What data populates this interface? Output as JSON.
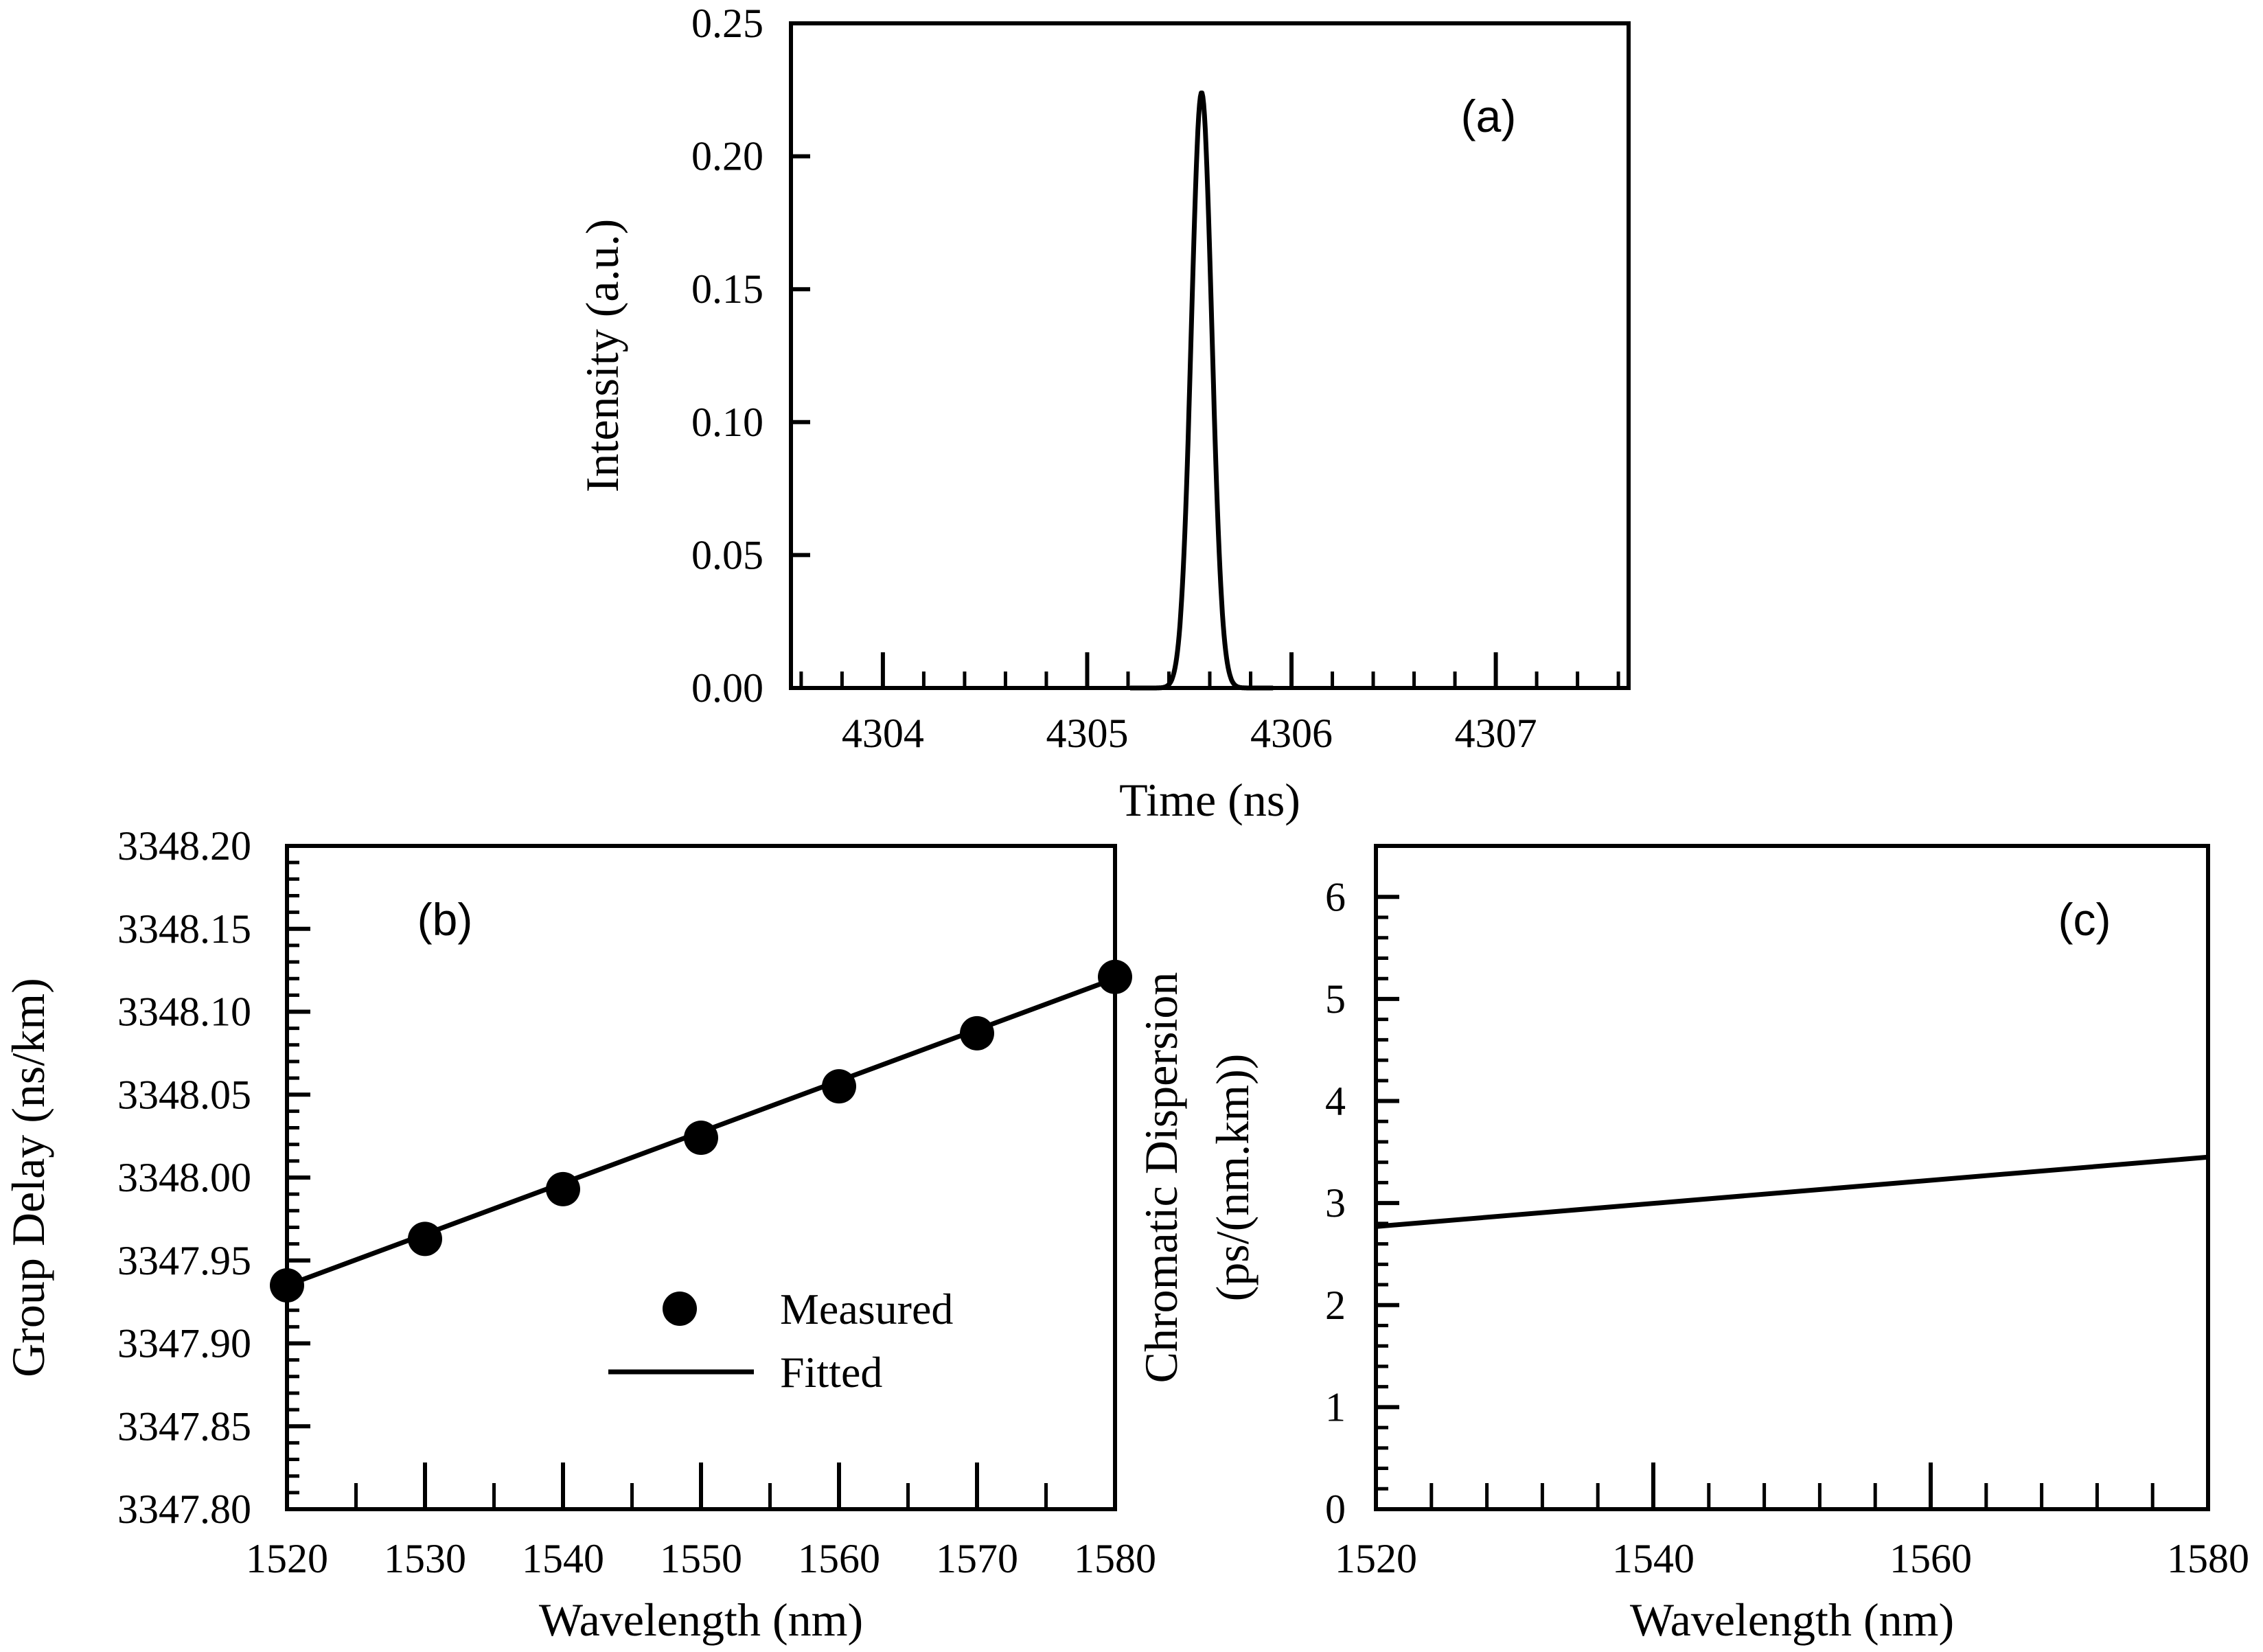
{
  "chart_data": [
    {
      "id": "a",
      "type": "line",
      "panel_label": "(a)",
      "xlabel": "Time (ns)",
      "ylabel": "Intensity (a.u.)",
      "xlim": [
        4303.55,
        4307.65
      ],
      "ylim": [
        0,
        0.25
      ],
      "xticks": [
        "4304",
        "4305",
        "4306",
        "4307"
      ],
      "yticks": [
        "0.00",
        "0.05",
        "0.10",
        "0.15",
        "0.20",
        "0.25"
      ],
      "series": [
        {
          "name": "pulse",
          "shape": "gaussian",
          "peak_x": 4305.56,
          "peak_y": 0.224,
          "sigma": 0.05
        }
      ]
    },
    {
      "id": "b",
      "type": "scatter",
      "panel_label": "(b)",
      "xlabel": "Wavelength (nm)",
      "ylabel": "Group Delay (ns/km)",
      "xlim": [
        1520,
        1580
      ],
      "ylim": [
        3347.8,
        3348.2
      ],
      "xticks": [
        "1520",
        "1530",
        "1540",
        "1550",
        "1560",
        "1570",
        "1580"
      ],
      "yticks": [
        "3347.80",
        "3347.85",
        "3347.90",
        "3347.95",
        "3348.00",
        "3348.05",
        "3348.10",
        "3348.15",
        "3348.20"
      ],
      "legend": {
        "placement": "lower-center",
        "entries": [
          "Measured",
          "Fitted"
        ]
      },
      "series": [
        {
          "name": "Measured",
          "x": [
            1520,
            1530,
            1540,
            1550,
            1560,
            1570,
            1580
          ],
          "y": [
            3347.935,
            3347.963,
            3347.993,
            3348.024,
            3348.055,
            3348.087,
            3348.121
          ]
        },
        {
          "name": "Fitted",
          "x": [
            1520,
            1580
          ],
          "y": [
            3347.935,
            3348.12
          ]
        }
      ]
    },
    {
      "id": "c",
      "type": "line",
      "panel_label": "(c)",
      "xlabel": "Wavelength (nm)",
      "ylabel_lines": [
        "Chromatic Dispersion",
        "(ps/(nm.km))"
      ],
      "xlim": [
        1520,
        1580
      ],
      "ylim": [
        0,
        6.5
      ],
      "xticks": [
        "1520",
        "1540",
        "1560",
        "1580"
      ],
      "yticks": [
        "0",
        "1",
        "2",
        "3",
        "4",
        "5",
        "6"
      ],
      "series": [
        {
          "name": "dispersion",
          "x": [
            1520,
            1580
          ],
          "y": [
            2.77,
            3.45
          ]
        }
      ]
    }
  ]
}
